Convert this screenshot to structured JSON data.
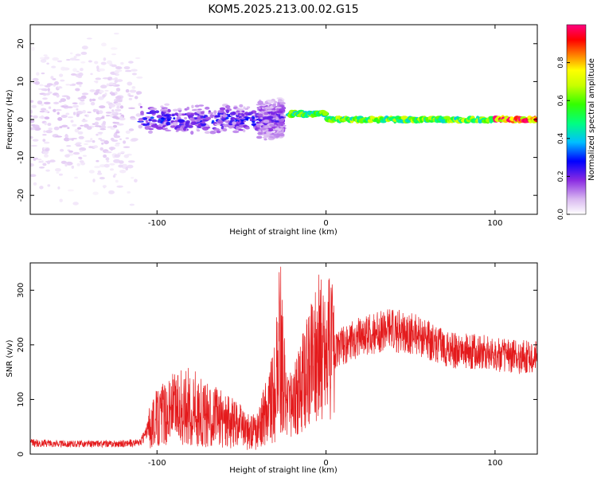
{
  "title": "KOM5.2025.213.00.02.G15",
  "spectrogram": {
    "ylabel": "Frequency (Hz)",
    "xlabel": "Height of straight line (km)",
    "xlim": [
      -175,
      125
    ],
    "ylim": [
      -25,
      25
    ],
    "xticks": [
      -100,
      0,
      100
    ],
    "yticks": [
      -20,
      -10,
      0,
      10,
      20
    ],
    "colorbar": {
      "label": "Normalized spectral amplitude",
      "ticks": [
        "0.0",
        "0.2",
        "0.4",
        "0.6",
        "0.8"
      ],
      "range": [
        0,
        1
      ]
    }
  },
  "chart_data": [
    {
      "type": "heatmap",
      "title": "KOM5.2025.213.00.02.G15",
      "xlabel": "Height of straight line (km)",
      "ylabel": "Frequency (Hz)",
      "xlim": [
        -175,
        125
      ],
      "ylim": [
        -25,
        25
      ],
      "colorbar_label": "Normalized spectral amplitude",
      "segments": [
        {
          "x_start": -175,
          "x_end": -110,
          "freq_spread": 23,
          "amplitude": 0.05
        },
        {
          "x_start": -110,
          "x_end": -40,
          "freq_spread": 4,
          "amplitude": 0.2
        },
        {
          "x_start": -40,
          "x_end": -25,
          "freq_spread": 6,
          "amplitude": 0.15
        },
        {
          "x_start": -22,
          "x_end": 0,
          "center_freq": 1.5,
          "amplitude": 0.55
        },
        {
          "x_start": 0,
          "x_end": 100,
          "center_freq": 0,
          "amplitude": 0.6
        },
        {
          "x_start": 100,
          "x_end": 125,
          "center_freq": 0,
          "amplitude": 0.95
        }
      ]
    },
    {
      "type": "line",
      "xlabel": "Height of straight line (km)",
      "ylabel": "SNR (v/v)",
      "xlim": [
        -175,
        125
      ],
      "ylim": [
        0,
        350
      ],
      "xticks": [
        -100,
        0,
        100
      ],
      "yticks": [
        0,
        100,
        200,
        300
      ],
      "series_color": "#e41a1c",
      "x": [
        -175,
        -150,
        -125,
        -110,
        -105,
        -100,
        -90,
        -80,
        -70,
        -60,
        -50,
        -45,
        -40,
        -35,
        -30,
        -27,
        -25,
        -20,
        -15,
        -10,
        -5,
        0,
        5,
        10,
        20,
        30,
        40,
        50,
        60,
        70,
        80,
        90,
        100,
        110,
        125
      ],
      "y": [
        20,
        18,
        18,
        20,
        45,
        60,
        75,
        80,
        65,
        60,
        45,
        35,
        40,
        75,
        110,
        190,
        120,
        80,
        120,
        150,
        190,
        175,
        185,
        195,
        210,
        220,
        222,
        218,
        205,
        190,
        185,
        185,
        180,
        175,
        175
      ]
    }
  ],
  "snr": {
    "ylabel": "SNR (v/v)",
    "xlabel": "Height of straight line (km)",
    "xticks": [
      -100,
      0,
      100
    ],
    "yticks": [
      0,
      100,
      200,
      300
    ]
  }
}
